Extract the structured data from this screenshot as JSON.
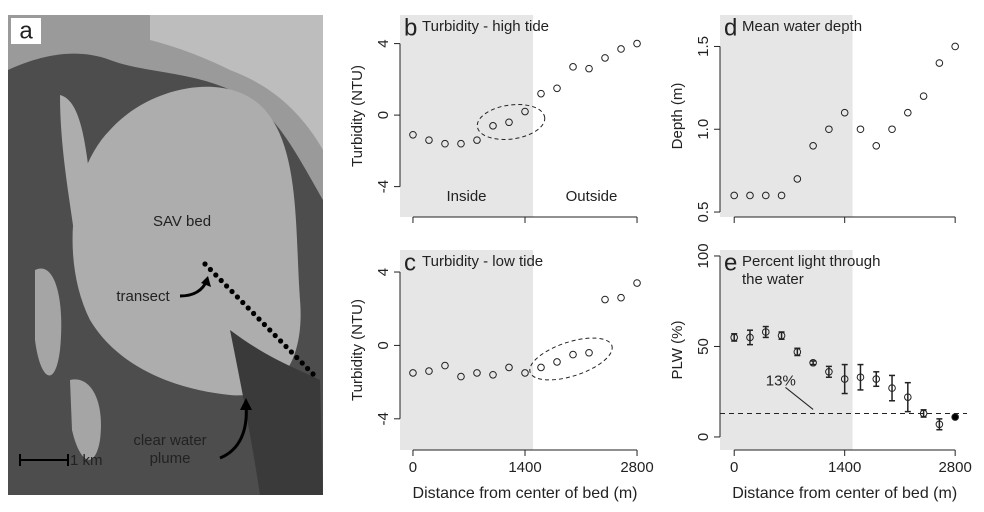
{
  "image_panel": {
    "panel_label": "a",
    "labels": [
      "SAV bed",
      "transect",
      "clear water plume"
    ],
    "scale_bar": "1 km"
  },
  "chart_data": [
    {
      "type": "scatter",
      "panel_label": "b",
      "title": "Turbidity - high tide",
      "ylabel": "Turbidity (NTU)",
      "x": [
        0,
        200,
        400,
        600,
        800,
        1000,
        1200,
        1400,
        1600,
        1800,
        2000,
        2200,
        2400,
        2600,
        2800
      ],
      "values": [
        -1.1,
        -1.4,
        -1.6,
        -1.6,
        -1.4,
        -0.6,
        -0.4,
        0.2,
        1.2,
        1.5,
        2.7,
        2.6,
        3.2,
        3.7,
        4.0
      ],
      "xlim": [
        -162,
        2962
      ],
      "xticks": [
        0,
        1400,
        2800
      ],
      "show_xtick_labels": false,
      "ylim": [
        -5.7,
        5.6
      ],
      "yticks": [
        -4,
        0,
        4
      ],
      "shade_end": 1500,
      "annotations": [
        "Inside",
        "Outside"
      ]
    },
    {
      "type": "scatter",
      "panel_label": "c",
      "title": "Turbidity - low tide",
      "ylabel": "Turbidity (NTU)",
      "xlabel": "Distance from center of bed (m)",
      "x": [
        0,
        200,
        400,
        600,
        800,
        1000,
        1200,
        1400,
        1600,
        1800,
        2000,
        2200,
        2400,
        2600,
        2800
      ],
      "values": [
        -1.5,
        -1.4,
        -1.1,
        -1.7,
        -1.5,
        -1.6,
        -1.2,
        -1.5,
        -1.2,
        -0.9,
        -0.5,
        -0.4,
        2.5,
        2.6,
        3.4
      ],
      "xlim": [
        -162,
        2962
      ],
      "xticks": [
        0,
        1400,
        2800
      ],
      "show_xtick_labels": true,
      "ylim": [
        -5.7,
        5.2
      ],
      "yticks": [
        -4,
        0,
        4
      ],
      "shade_end": 1500
    },
    {
      "type": "scatter",
      "panel_label": "d",
      "title": "Mean water depth",
      "ylabel": "Depth (m)",
      "x": [
        0,
        200,
        400,
        600,
        800,
        1000,
        1200,
        1400,
        1600,
        1800,
        2000,
        2200,
        2400,
        2600,
        2800
      ],
      "values": [
        0.6,
        0.6,
        0.6,
        0.6,
        0.7,
        0.9,
        1.0,
        1.1,
        1.0,
        0.9,
        1.0,
        1.1,
        1.2,
        1.4,
        1.5
      ],
      "xlim": [
        -180,
        2950
      ],
      "xticks": [
        0,
        1400,
        2800
      ],
      "show_xtick_labels": false,
      "ylim": [
        0.47,
        1.69
      ],
      "yticks": [
        {
          "value": 0.5,
          "label": "0.5"
        },
        {
          "value": 1,
          "label": "1.0"
        },
        1.5
      ],
      "shade_end": 1500
    },
    {
      "type": "errorbar",
      "panel_label": "e",
      "title_lines": [
        "Percent light through",
        "the water"
      ],
      "ylabel": "PLW (%)",
      "xlabel": "Distance from center of bed (m)",
      "x": [
        0,
        200,
        400,
        600,
        800,
        1000,
        1200,
        1400,
        1600,
        1800,
        2000,
        2200,
        2400,
        2600,
        2800
      ],
      "values": [
        55,
        55,
        58,
        56,
        47,
        41,
        36,
        32,
        33,
        32,
        27,
        22,
        13,
        7,
        11
      ],
      "errors": [
        2,
        4,
        3,
        2,
        2,
        1,
        3,
        8,
        7,
        4,
        7,
        8,
        2,
        3,
        0
      ],
      "filled_points": [
        14
      ],
      "xlim": [
        -180,
        2950
      ],
      "xticks": [
        0,
        1400,
        2800
      ],
      "show_xtick_labels": true,
      "ylim": [
        -7.2,
        103.3
      ],
      "yticks": [
        0,
        50,
        100
      ],
      "shade_end": 1500,
      "hline": 13,
      "hline_label": "13%"
    }
  ]
}
